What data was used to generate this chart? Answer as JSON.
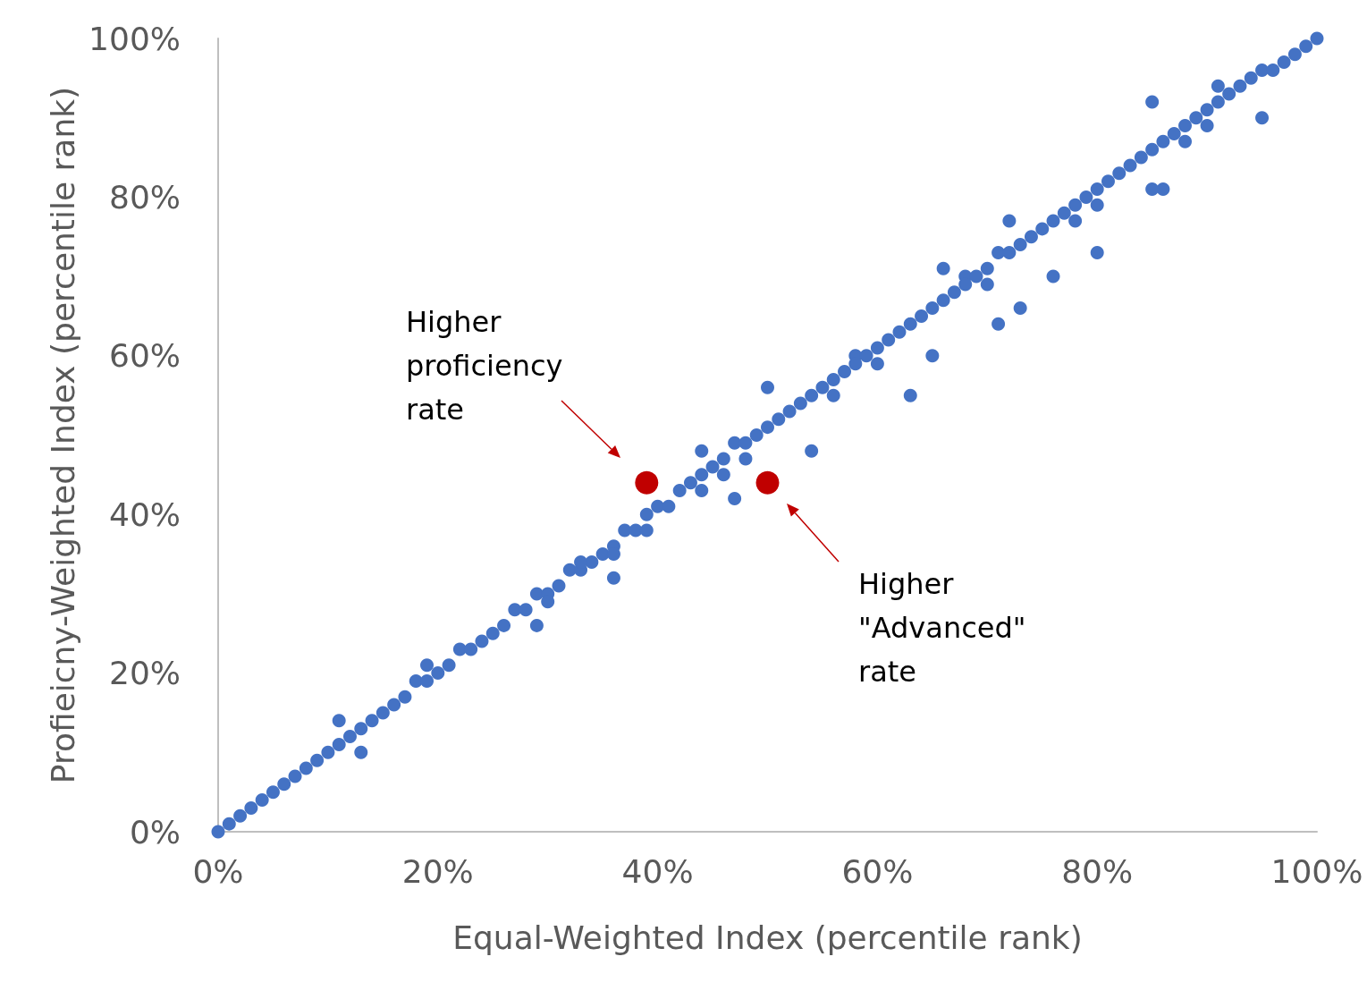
{
  "chart_data": {
    "type": "scatter",
    "xlabel": "Equal-Weighted Index (percentile rank)",
    "ylabel": "Profieicny-Weighted Index (percentile rank)",
    "xlim": [
      0,
      100
    ],
    "ylim": [
      0,
      100
    ],
    "xticks": [
      {
        "value": 0,
        "label": "0%"
      },
      {
        "value": 20,
        "label": "20%"
      },
      {
        "value": 40,
        "label": "40%"
      },
      {
        "value": 60,
        "label": "60%"
      },
      {
        "value": 80,
        "label": "80%"
      },
      {
        "value": 100,
        "label": "100%"
      }
    ],
    "yticks": [
      {
        "value": 0,
        "label": "0%"
      },
      {
        "value": 20,
        "label": "20%"
      },
      {
        "value": 40,
        "label": "40%"
      },
      {
        "value": 60,
        "label": "60%"
      },
      {
        "value": 80,
        "label": "80%"
      },
      {
        "value": 100,
        "label": "100%"
      }
    ],
    "grid": false,
    "marker": "circle",
    "series": [
      {
        "color": "#4472c4",
        "x": [
          0,
          1,
          2,
          3,
          4,
          5,
          6,
          7,
          8,
          9,
          10,
          11,
          12,
          13,
          14,
          15,
          16,
          17,
          18,
          19,
          20,
          21,
          22,
          23,
          24,
          25,
          26,
          27,
          28,
          29,
          30,
          31,
          32,
          33,
          34,
          35,
          36,
          37,
          38,
          39,
          40,
          41,
          42,
          43,
          44,
          45,
          46,
          47,
          48,
          49,
          50,
          51,
          52,
          53,
          54,
          55,
          56,
          57,
          58,
          59,
          60,
          61,
          62,
          63,
          64,
          65,
          66,
          67,
          68,
          69,
          70,
          71,
          72,
          73,
          74,
          75,
          76,
          77,
          78,
          79,
          80,
          81,
          82,
          83,
          84,
          85,
          86,
          87,
          88,
          89,
          90,
          91,
          92,
          93,
          94,
          95,
          96,
          97,
          98,
          99,
          100,
          13,
          11,
          19,
          29,
          36,
          39,
          44,
          47,
          50,
          54,
          63,
          65,
          71,
          66,
          72,
          76,
          80,
          86,
          85,
          91,
          85,
          95,
          73,
          30,
          36,
          44,
          46,
          56,
          60,
          70,
          80,
          90,
          33,
          48,
          58,
          68,
          78,
          88
        ],
        "values": [
          0,
          1,
          2,
          3,
          4,
          5,
          6,
          7,
          8,
          9,
          10,
          11,
          12,
          13,
          14,
          15,
          16,
          17,
          19,
          19,
          20,
          21,
          23,
          23,
          24,
          25,
          26,
          28,
          28,
          30,
          30,
          31,
          33,
          33,
          34,
          35,
          36,
          38,
          38,
          40,
          41,
          41,
          43,
          44,
          45,
          46,
          47,
          49,
          49,
          50,
          51,
          52,
          53,
          54,
          55,
          56,
          57,
          58,
          60,
          60,
          61,
          62,
          63,
          64,
          65,
          66,
          67,
          68,
          70,
          70,
          71,
          73,
          73,
          74,
          75,
          76,
          77,
          78,
          79,
          80,
          81,
          82,
          83,
          84,
          85,
          86,
          87,
          88,
          89,
          90,
          91,
          92,
          93,
          94,
          95,
          96,
          96,
          97,
          98,
          99,
          100,
          10,
          14,
          21,
          26,
          32,
          38,
          48,
          42,
          56,
          48,
          55,
          60,
          64,
          71,
          77,
          70,
          73,
          81,
          92,
          94,
          81,
          90,
          66,
          29,
          35,
          43,
          45,
          55,
          59,
          69,
          79,
          89,
          34,
          47,
          59,
          69,
          77,
          87
        ]
      },
      {
        "color": "#c00000",
        "x": [
          39,
          50
        ],
        "values": [
          44,
          44
        ]
      }
    ],
    "annotations": [
      "Higher proficiency rate",
      "Higher \"Advanced\" rate"
    ]
  }
}
